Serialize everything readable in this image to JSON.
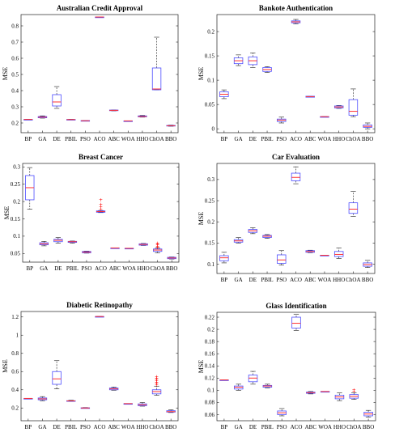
{
  "chart_data": [
    {
      "type": "boxplot",
      "title": "Australian Credit Approval",
      "ylabel": "MSE",
      "categories": [
        "BP",
        "GA",
        "DE",
        "PBIL",
        "PSO",
        "ACO",
        "ABC",
        "WOA",
        "HHO",
        "ChOA",
        "BBO"
      ],
      "ylim": [
        0.14,
        0.87
      ],
      "yticks": [
        0.2,
        0.3,
        0.4,
        0.5,
        0.6,
        0.7,
        0.8
      ],
      "ytick_labels": [
        "0.2",
        "0.3",
        "0.4",
        "0.5",
        "0.6",
        "0.7",
        "0.8"
      ],
      "boxes": [
        {
          "min": 0.222,
          "q1": 0.222,
          "median": 0.222,
          "q3": 0.222,
          "max": 0.222
        },
        {
          "min": 0.23,
          "q1": 0.232,
          "median": 0.236,
          "q3": 0.24,
          "max": 0.244
        },
        {
          "min": 0.29,
          "q1": 0.305,
          "median": 0.33,
          "q3": 0.375,
          "max": 0.425
        },
        {
          "min": 0.22,
          "q1": 0.22,
          "median": 0.221,
          "q3": 0.222,
          "max": 0.223
        },
        {
          "min": 0.212,
          "q1": 0.213,
          "median": 0.214,
          "q3": 0.215,
          "max": 0.216
        },
        {
          "min": 0.855,
          "q1": 0.855,
          "median": 0.855,
          "q3": 0.855,
          "max": 0.855
        },
        {
          "min": 0.275,
          "q1": 0.276,
          "median": 0.278,
          "q3": 0.28,
          "max": 0.281
        },
        {
          "min": 0.213,
          "q1": 0.213,
          "median": 0.213,
          "q3": 0.213,
          "max": 0.213
        },
        {
          "min": 0.236,
          "q1": 0.238,
          "median": 0.24,
          "q3": 0.244,
          "max": 0.247
        },
        {
          "min": 0.405,
          "q1": 0.405,
          "median": 0.41,
          "q3": 0.54,
          "max": 0.73
        },
        {
          "min": 0.18,
          "q1": 0.181,
          "median": 0.183,
          "q3": 0.185,
          "max": 0.187
        }
      ]
    },
    {
      "type": "boxplot",
      "title": "Bankote Authentication",
      "ylabel": "MSE",
      "categories": [
        "BP",
        "GA",
        "DE",
        "PBIL",
        "PSO",
        "ACO",
        "ABC",
        "WOA",
        "HHO",
        "ChOA",
        "BBO"
      ],
      "ylim": [
        -0.008,
        0.235
      ],
      "yticks": [
        0,
        0.05,
        0.1,
        0.15,
        0.2
      ],
      "ytick_labels": [
        "0",
        "0.05",
        "0.1",
        "0.15",
        "0.2"
      ],
      "boxes": [
        {
          "min": 0.062,
          "q1": 0.066,
          "median": 0.071,
          "q3": 0.076,
          "max": 0.08
        },
        {
          "min": 0.13,
          "q1": 0.134,
          "median": 0.14,
          "q3": 0.146,
          "max": 0.152
        },
        {
          "min": 0.126,
          "q1": 0.132,
          "median": 0.14,
          "q3": 0.148,
          "max": 0.156
        },
        {
          "min": 0.116,
          "q1": 0.118,
          "median": 0.122,
          "q3": 0.126,
          "max": 0.128
        },
        {
          "min": 0.012,
          "q1": 0.015,
          "median": 0.018,
          "q3": 0.02,
          "max": 0.024
        },
        {
          "min": 0.216,
          "q1": 0.218,
          "median": 0.22,
          "q3": 0.222,
          "max": 0.225
        },
        {
          "min": 0.065,
          "q1": 0.065,
          "median": 0.066,
          "q3": 0.067,
          "max": 0.067
        },
        {
          "min": 0.025,
          "q1": 0.025,
          "median": 0.025,
          "q3": 0.025,
          "max": 0.025
        },
        {
          "min": 0.042,
          "q1": 0.043,
          "median": 0.045,
          "q3": 0.047,
          "max": 0.048
        },
        {
          "min": 0.025,
          "q1": 0.028,
          "median": 0.036,
          "q3": 0.06,
          "max": 0.082
        },
        {
          "min": 0.0,
          "q1": 0.003,
          "median": 0.005,
          "q3": 0.008,
          "max": 0.012
        }
      ],
      "outliers": []
    },
    {
      "type": "boxplot",
      "title": "Breast Cancer",
      "ylabel": "MSE",
      "categories": [
        "BP",
        "GA",
        "DE",
        "PBIL",
        "PSO",
        "ACO",
        "ABC",
        "WOA",
        "HHO",
        "ChOA",
        "BBO"
      ],
      "ylim": [
        0.025,
        0.31
      ],
      "yticks": [
        0.05,
        0.1,
        0.15,
        0.2,
        0.25,
        0.3
      ],
      "ytick_labels": [
        "0.05",
        "0.1",
        "0.15",
        "0.2",
        "0.25",
        "0.3"
      ],
      "boxes": [
        {
          "min": 0.178,
          "q1": 0.205,
          "median": 0.24,
          "q3": 0.275,
          "max": 0.298
        },
        {
          "min": 0.072,
          "q1": 0.075,
          "median": 0.078,
          "q3": 0.081,
          "max": 0.085
        },
        {
          "min": 0.08,
          "q1": 0.084,
          "median": 0.088,
          "q3": 0.091,
          "max": 0.096
        },
        {
          "min": 0.08,
          "q1": 0.082,
          "median": 0.084,
          "q3": 0.085,
          "max": 0.086
        },
        {
          "min": 0.051,
          "q1": 0.052,
          "median": 0.054,
          "q3": 0.056,
          "max": 0.057
        },
        {
          "min": 0.168,
          "q1": 0.169,
          "median": 0.171,
          "q3": 0.173,
          "max": 0.174
        },
        {
          "min": 0.066,
          "q1": 0.066,
          "median": 0.066,
          "q3": 0.066,
          "max": 0.066
        },
        {
          "min": 0.065,
          "q1": 0.065,
          "median": 0.065,
          "q3": 0.065,
          "max": 0.065
        },
        {
          "min": 0.073,
          "q1": 0.074,
          "median": 0.076,
          "q3": 0.078,
          "max": 0.079
        },
        {
          "min": 0.052,
          "q1": 0.056,
          "median": 0.06,
          "q3": 0.063,
          "max": 0.066
        },
        {
          "min": 0.034,
          "q1": 0.035,
          "median": 0.037,
          "q3": 0.039,
          "max": 0.04
        }
      ],
      "outliers": [
        {
          "category": "ACO",
          "values": [
            0.178,
            0.185,
            0.193,
            0.205
          ]
        },
        {
          "category": "ChOA",
          "values": [
            0.068,
            0.071,
            0.074,
            0.077,
            0.08
          ]
        }
      ]
    },
    {
      "type": "boxplot",
      "title": "Car Evaluation",
      "ylabel": "MSE",
      "categories": [
        "BP",
        "GA",
        "DE",
        "PBIL",
        "PSO",
        "ACO",
        "ABC",
        "WOA",
        "HHO",
        "ChOA",
        "BBO"
      ],
      "ylim": [
        0.078,
        0.338
      ],
      "yticks": [
        0.1,
        0.15,
        0.2,
        0.25,
        0.3
      ],
      "ytick_labels": [
        "0.1",
        "0.15",
        "0.2",
        "0.25",
        "0.3"
      ],
      "boxes": [
        {
          "min": 0.103,
          "q1": 0.108,
          "median": 0.115,
          "q3": 0.12,
          "max": 0.128
        },
        {
          "min": 0.15,
          "q1": 0.152,
          "median": 0.155,
          "q3": 0.158,
          "max": 0.163
        },
        {
          "min": 0.172,
          "q1": 0.175,
          "median": 0.179,
          "q3": 0.182,
          "max": 0.186
        },
        {
          "min": 0.161,
          "q1": 0.163,
          "median": 0.166,
          "q3": 0.168,
          "max": 0.17
        },
        {
          "min": 0.098,
          "q1": 0.102,
          "median": 0.11,
          "q3": 0.122,
          "max": 0.132
        },
        {
          "min": 0.29,
          "q1": 0.297,
          "median": 0.305,
          "q3": 0.315,
          "max": 0.33
        },
        {
          "min": 0.127,
          "q1": 0.128,
          "median": 0.13,
          "q3": 0.132,
          "max": 0.133
        },
        {
          "min": 0.121,
          "q1": 0.121,
          "median": 0.121,
          "q3": 0.121,
          "max": 0.121
        },
        {
          "min": 0.113,
          "q1": 0.118,
          "median": 0.123,
          "q3": 0.13,
          "max": 0.138
        },
        {
          "min": 0.213,
          "q1": 0.22,
          "median": 0.23,
          "q3": 0.245,
          "max": 0.272
        },
        {
          "min": 0.092,
          "q1": 0.095,
          "median": 0.099,
          "q3": 0.103,
          "max": 0.109
        }
      ],
      "outliers": []
    },
    {
      "type": "boxplot",
      "title": "Diabetic Retinopathy",
      "ylabel": "MSE",
      "categories": [
        "BP",
        "GA",
        "DE",
        "PBIL",
        "PSO",
        "ACO",
        "ABC",
        "WOA",
        "HHO",
        "ChOA",
        "BBO"
      ],
      "ylim": [
        0.06,
        1.26
      ],
      "yticks": [
        0.2,
        0.4,
        0.6,
        0.8,
        1,
        1.2
      ],
      "ytick_labels": [
        "0.2",
        "0.4",
        "0.6",
        "0.8",
        "1",
        "1.2"
      ],
      "boxes": [
        {
          "min": 0.305,
          "q1": 0.305,
          "median": 0.305,
          "q3": 0.305,
          "max": 0.305
        },
        {
          "min": 0.28,
          "q1": 0.29,
          "median": 0.3,
          "q3": 0.31,
          "max": 0.325
        },
        {
          "min": 0.41,
          "q1": 0.46,
          "median": 0.52,
          "q3": 0.6,
          "max": 0.72
        },
        {
          "min": 0.272,
          "q1": 0.275,
          "median": 0.278,
          "q3": 0.28,
          "max": 0.285
        },
        {
          "min": 0.196,
          "q1": 0.198,
          "median": 0.2,
          "q3": 0.202,
          "max": 0.205
        },
        {
          "min": 1.205,
          "q1": 1.205,
          "median": 1.205,
          "q3": 1.205,
          "max": 1.205
        },
        {
          "min": 0.395,
          "q1": 0.4,
          "median": 0.41,
          "q3": 0.42,
          "max": 0.43
        },
        {
          "min": 0.248,
          "q1": 0.248,
          "median": 0.248,
          "q3": 0.248,
          "max": 0.248
        },
        {
          "min": 0.22,
          "q1": 0.225,
          "median": 0.235,
          "q3": 0.245,
          "max": 0.26
        },
        {
          "min": 0.34,
          "q1": 0.355,
          "median": 0.38,
          "q3": 0.4,
          "max": 0.44
        },
        {
          "min": 0.15,
          "q1": 0.155,
          "median": 0.16,
          "q3": 0.17,
          "max": 0.18
        }
      ],
      "outliers": [
        {
          "category": "ChOA",
          "values": [
            0.455,
            0.47,
            0.485,
            0.5,
            0.515,
            0.53,
            0.545
          ]
        }
      ]
    },
    {
      "type": "boxplot",
      "title": "Glass Identification",
      "ylabel": "MSE",
      "categories": [
        "BP",
        "GA",
        "DE",
        "PBIL",
        "PSO",
        "ACO",
        "ABC",
        "WOA",
        "HHO",
        "ChOA",
        "BBO"
      ],
      "ylim": [
        0.05,
        0.228
      ],
      "yticks": [
        0.06,
        0.08,
        0.1,
        0.12,
        0.14,
        0.16,
        0.18,
        0.2,
        0.22
      ],
      "ytick_labels": [
        "0.06",
        "0.08",
        "0.1",
        "0.12",
        "0.14",
        "0.16",
        "0.18",
        "0.2",
        "0.22"
      ],
      "boxes": [
        {
          "min": 0.117,
          "q1": 0.117,
          "median": 0.117,
          "q3": 0.117,
          "max": 0.117
        },
        {
          "min": 0.1,
          "q1": 0.102,
          "median": 0.105,
          "q3": 0.107,
          "max": 0.11
        },
        {
          "min": 0.11,
          "q1": 0.114,
          "median": 0.12,
          "q3": 0.125,
          "max": 0.131
        },
        {
          "min": 0.104,
          "q1": 0.105,
          "median": 0.107,
          "q3": 0.108,
          "max": 0.11
        },
        {
          "min": 0.058,
          "q1": 0.06,
          "median": 0.063,
          "q3": 0.066,
          "max": 0.07
        },
        {
          "min": 0.198,
          "q1": 0.202,
          "median": 0.21,
          "q3": 0.22,
          "max": 0.225
        },
        {
          "min": 0.094,
          "q1": 0.095,
          "median": 0.096,
          "q3": 0.097,
          "max": 0.098
        },
        {
          "min": 0.098,
          "q1": 0.098,
          "median": 0.098,
          "q3": 0.098,
          "max": 0.098
        },
        {
          "min": 0.083,
          "q1": 0.086,
          "median": 0.089,
          "q3": 0.092,
          "max": 0.096
        },
        {
          "min": 0.085,
          "q1": 0.087,
          "median": 0.09,
          "q3": 0.093,
          "max": 0.096
        },
        {
          "min": 0.056,
          "q1": 0.058,
          "median": 0.061,
          "q3": 0.064,
          "max": 0.067
        }
      ],
      "outliers": [
        {
          "category": "ChOA",
          "values": [
            0.099,
            0.101
          ]
        }
      ]
    }
  ],
  "colors": {
    "box": "#4d4dff",
    "median": "#ff3333",
    "whisker": "#1a1a1a",
    "outlier": "#ff0000",
    "axis": "#222222"
  }
}
